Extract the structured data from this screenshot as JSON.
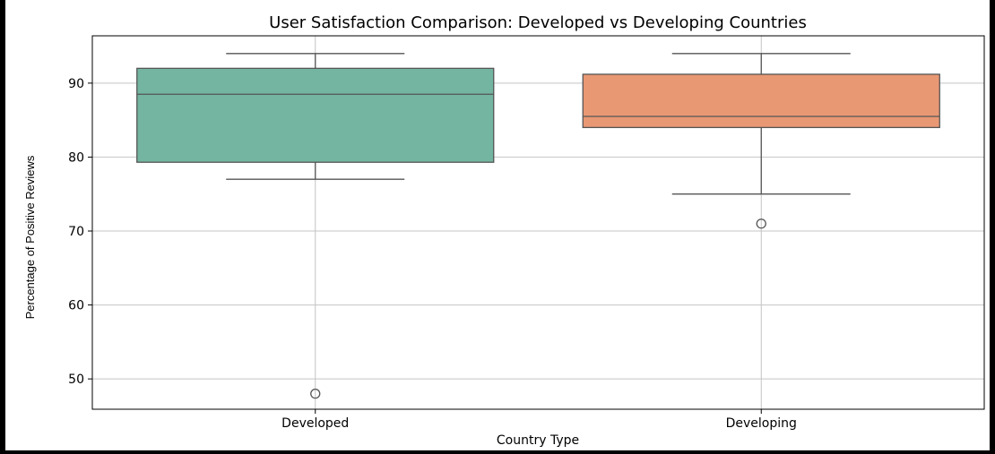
{
  "chart_data": {
    "type": "box",
    "title": "User Satisfaction Comparison: Developed vs Developing Countries",
    "xlabel": "Country Type",
    "ylabel": "Percentage of Positive Reviews",
    "categories": [
      "Developed",
      "Developing"
    ],
    "ylim": [
      45.9,
      96.4
    ],
    "yticks": [
      50,
      60,
      70,
      80,
      90
    ],
    "grid": true,
    "boxes": [
      {
        "category": "Developed",
        "whisker_low": 77,
        "q1": 79.3,
        "median": 88.5,
        "q3": 92,
        "whisker_high": 94,
        "outliers": [
          48
        ],
        "color": "#73b5a0"
      },
      {
        "category": "Developing",
        "whisker_low": 75,
        "q1": 84,
        "median": 85.5,
        "q3": 91.2,
        "whisker_high": 94,
        "outliers": [
          71
        ],
        "color": "#e99874"
      }
    ]
  }
}
